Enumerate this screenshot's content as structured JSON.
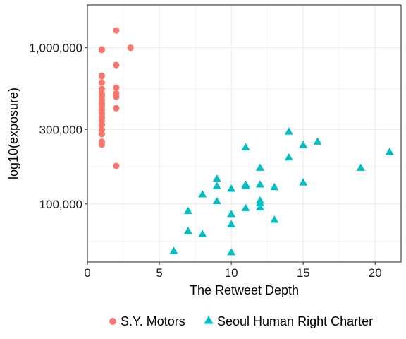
{
  "chart_data": {
    "type": "scatter",
    "xlabel": "The Retweet Depth",
    "ylabel": "log10(exposure)",
    "x_scale": "linear",
    "y_scale": "log",
    "xlim": [
      0,
      21.8
    ],
    "ylim": [
      42500,
      1880000
    ],
    "x_ticks": [
      0,
      5,
      10,
      15,
      20
    ],
    "x_tick_labels": [
      "0",
      "5",
      "10",
      "15",
      "20"
    ],
    "y_ticks": [
      100000,
      300000,
      1000000
    ],
    "y_tick_labels": [
      "100,000",
      "300,000",
      "1,000,000"
    ],
    "grid": true,
    "legend_position": "bottom",
    "series": [
      {
        "name": "S.Y. Motors",
        "marker": "circle",
        "color": "#F8766D",
        "points": [
          [
            1,
            975000
          ],
          [
            1,
            970000
          ],
          [
            1,
            660000
          ],
          [
            1,
            600000
          ],
          [
            1,
            545000
          ],
          [
            1,
            510000
          ],
          [
            1,
            490000
          ],
          [
            1,
            465000
          ],
          [
            1,
            440000
          ],
          [
            1,
            420000
          ],
          [
            1,
            400000
          ],
          [
            1,
            380000
          ],
          [
            1,
            360000
          ],
          [
            1,
            340000
          ],
          [
            1,
            320000
          ],
          [
            1,
            300000
          ],
          [
            1,
            280000
          ],
          [
            1,
            250000
          ],
          [
            1,
            240000
          ],
          [
            2,
            1290000
          ],
          [
            2,
            775000
          ],
          [
            2,
            555000
          ],
          [
            2,
            510000
          ],
          [
            2,
            485000
          ],
          [
            2,
            410000
          ],
          [
            2,
            175000
          ],
          [
            3,
            1000000
          ]
        ]
      },
      {
        "name": "Seoul Human Right Charter",
        "marker": "triangle",
        "color": "#00BFC4",
        "points": [
          [
            6,
            50000
          ],
          [
            7,
            90000
          ],
          [
            7,
            67000
          ],
          [
            8,
            115000
          ],
          [
            8,
            64000
          ],
          [
            9,
            145000
          ],
          [
            9,
            130000
          ],
          [
            9,
            104000
          ],
          [
            10,
            125000
          ],
          [
            10,
            86000
          ],
          [
            10,
            74000
          ],
          [
            10,
            49000
          ],
          [
            11,
            230000
          ],
          [
            11,
            133000
          ],
          [
            11,
            130000
          ],
          [
            11,
            94000
          ],
          [
            12,
            170000
          ],
          [
            12,
            133000
          ],
          [
            12,
            105000
          ],
          [
            12,
            101000
          ],
          [
            12,
            95000
          ],
          [
            13,
            128000
          ],
          [
            13,
            79000
          ],
          [
            14,
            290000
          ],
          [
            14,
            198000
          ],
          [
            15,
            238000
          ],
          [
            15,
            137000
          ],
          [
            16,
            250000
          ],
          [
            19,
            170000
          ],
          [
            21,
            215000
          ]
        ]
      }
    ]
  }
}
